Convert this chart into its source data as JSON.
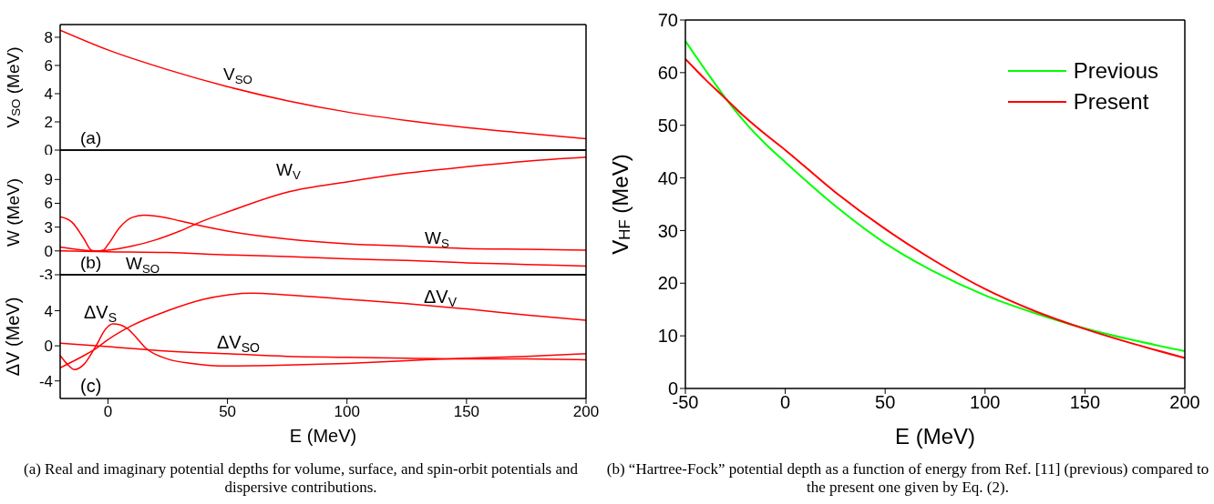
{
  "chart_data": [
    {
      "type": "line",
      "ylabel": "V$_{SO}$ (MeV)",
      "xlim": [
        -20,
        200
      ],
      "xticks": [
        0,
        50,
        100,
        150,
        200
      ],
      "ylim": [
        0,
        8.9
      ],
      "yticks": [
        0,
        2,
        4,
        6,
        8
      ],
      "tick_labels": "y",
      "annotations": [
        "(a)"
      ],
      "series": [
        {
          "name": "V$_{SO}$",
          "color": "#ff0000",
          "x": [
            -20,
            0,
            25,
            50,
            75,
            100,
            125,
            150,
            175,
            200
          ],
          "values": [
            8.5,
            7.1,
            5.7,
            4.5,
            3.5,
            2.7,
            2.1,
            1.6,
            1.2,
            0.8
          ]
        }
      ]
    },
    {
      "type": "line",
      "ylabel": "W (MeV)",
      "xlim": [
        -20,
        200
      ],
      "xticks": [
        0,
        50,
        100,
        150,
        200
      ],
      "ylim": [
        -3,
        12.7
      ],
      "yticks": [
        -3,
        0,
        3,
        6,
        9
      ],
      "tick_labels": "y",
      "annotations": [
        "(b)"
      ],
      "series": [
        {
          "name": "W$_{V}$",
          "color": "#ff0000",
          "x": [
            -20,
            -10,
            -5,
            0,
            10,
            20,
            30,
            40,
            50,
            75,
            100,
            125,
            150,
            175,
            200
          ],
          "values": [
            0.5,
            0.1,
            0,
            0.1,
            0.6,
            1.4,
            2.5,
            3.8,
            4.9,
            7.4,
            8.7,
            9.8,
            10.6,
            11.3,
            11.8
          ]
        },
        {
          "name": "W$_{S}$",
          "color": "#ff0000",
          "x": [
            -20,
            -15,
            -10,
            -7,
            -5,
            -2,
            0,
            5,
            10,
            15,
            20,
            30,
            40,
            50,
            75,
            100,
            125,
            150,
            175,
            200
          ],
          "values": [
            4.3,
            3.6,
            1.5,
            0.1,
            0,
            0.1,
            0.8,
            3.0,
            4.2,
            4.5,
            4.4,
            3.8,
            3.1,
            2.5,
            1.5,
            0.9,
            0.6,
            0.3,
            0.2,
            0.1
          ]
        },
        {
          "name": "W$_{SO}$",
          "color": "#ff0000",
          "x": [
            -20,
            0,
            25,
            50,
            75,
            100,
            125,
            150,
            175,
            200
          ],
          "values": [
            0,
            -0.1,
            -0.2,
            -0.5,
            -0.7,
            -1.0,
            -1.2,
            -1.5,
            -1.7,
            -1.9
          ]
        }
      ]
    },
    {
      "type": "line",
      "xlabel": "E (MeV)",
      "ylabel": "ΔV (MeV)",
      "xlim": [
        -20,
        200
      ],
      "xticks": [
        0,
        50,
        100,
        150,
        200
      ],
      "ylim": [
        -6,
        8.1
      ],
      "yticks": [
        -4,
        0,
        4
      ],
      "annotations": [
        "(c)",
        "(a) Real and imaginary potential depths for volume, surface, and spin-orbit potentials and dispersive contributions."
      ],
      "series": [
        {
          "name": "ΔV$_{V}$",
          "color": "#ff0000",
          "x": [
            -20,
            -10,
            -5,
            0,
            10,
            25,
            40,
            50,
            60,
            75,
            100,
            125,
            150,
            175,
            200
          ],
          "values": [
            -2.5,
            -1.1,
            -0.3,
            0.7,
            2.3,
            4.0,
            5.3,
            5.8,
            6.0,
            5.8,
            5.3,
            4.8,
            4.2,
            3.5,
            2.9
          ]
        },
        {
          "name": "ΔV$_{S}$",
          "color": "#ff0000",
          "x": [
            -20,
            -17,
            -14,
            -10,
            -5,
            -1,
            2,
            5,
            8,
            12,
            16,
            25,
            35,
            50,
            75,
            100,
            125,
            150,
            175,
            200
          ],
          "values": [
            -1.1,
            -2.1,
            -2.7,
            -2.1,
            0,
            1.9,
            2.5,
            2.4,
            2.0,
            0.9,
            -0.3,
            -1.5,
            -2.0,
            -2.3,
            -2.2,
            -2.0,
            -1.7,
            -1.4,
            -1.2,
            -0.9
          ]
        },
        {
          "name": "ΔV$_{SO}$",
          "color": "#ff0000",
          "x": [
            -20,
            0,
            25,
            50,
            75,
            100,
            125,
            150,
            175,
            200
          ],
          "values": [
            0.3,
            -0.1,
            -0.6,
            -0.9,
            -1.2,
            -1.3,
            -1.4,
            -1.5,
            -1.5,
            -1.6
          ]
        }
      ]
    },
    {
      "type": "line",
      "xlabel": "E (MeV)",
      "ylabel": "V$_{HF}$ (MeV)",
      "xlim": [
        -50,
        200
      ],
      "xticks": [
        -50,
        0,
        50,
        100,
        150,
        200
      ],
      "ylim": [
        0,
        70
      ],
      "yticks": [
        0,
        10,
        20,
        30,
        40,
        50,
        60,
        70
      ],
      "legend": "top right",
      "annotations": [
        "(b) “Hartree-Fock” potential depth as a function of energy from Ref. [11] (previous) compared to the present one given by Eq. (2)."
      ],
      "series": [
        {
          "name": "Previous",
          "color": "#00ff00",
          "x": [
            -50,
            -40,
            -30,
            -20,
            -10,
            0,
            25,
            50,
            75,
            100,
            125,
            150,
            175,
            200
          ],
          "values": [
            66,
            60.5,
            55.2,
            50.5,
            46.5,
            43,
            34.7,
            27.6,
            22.1,
            17.7,
            14.3,
            11.4,
            9.1,
            7.1
          ]
        },
        {
          "name": "Present",
          "color": "#ff0000",
          "x": [
            -50,
            -40,
            -30,
            -20,
            -10,
            0,
            25,
            50,
            75,
            100,
            125,
            150,
            175,
            200
          ],
          "values": [
            62.6,
            58.7,
            55.1,
            51.5,
            48.3,
            45.3,
            37.3,
            30.3,
            24.2,
            18.9,
            14.7,
            11.3,
            8.4,
            5.8
          ]
        }
      ]
    }
  ]
}
